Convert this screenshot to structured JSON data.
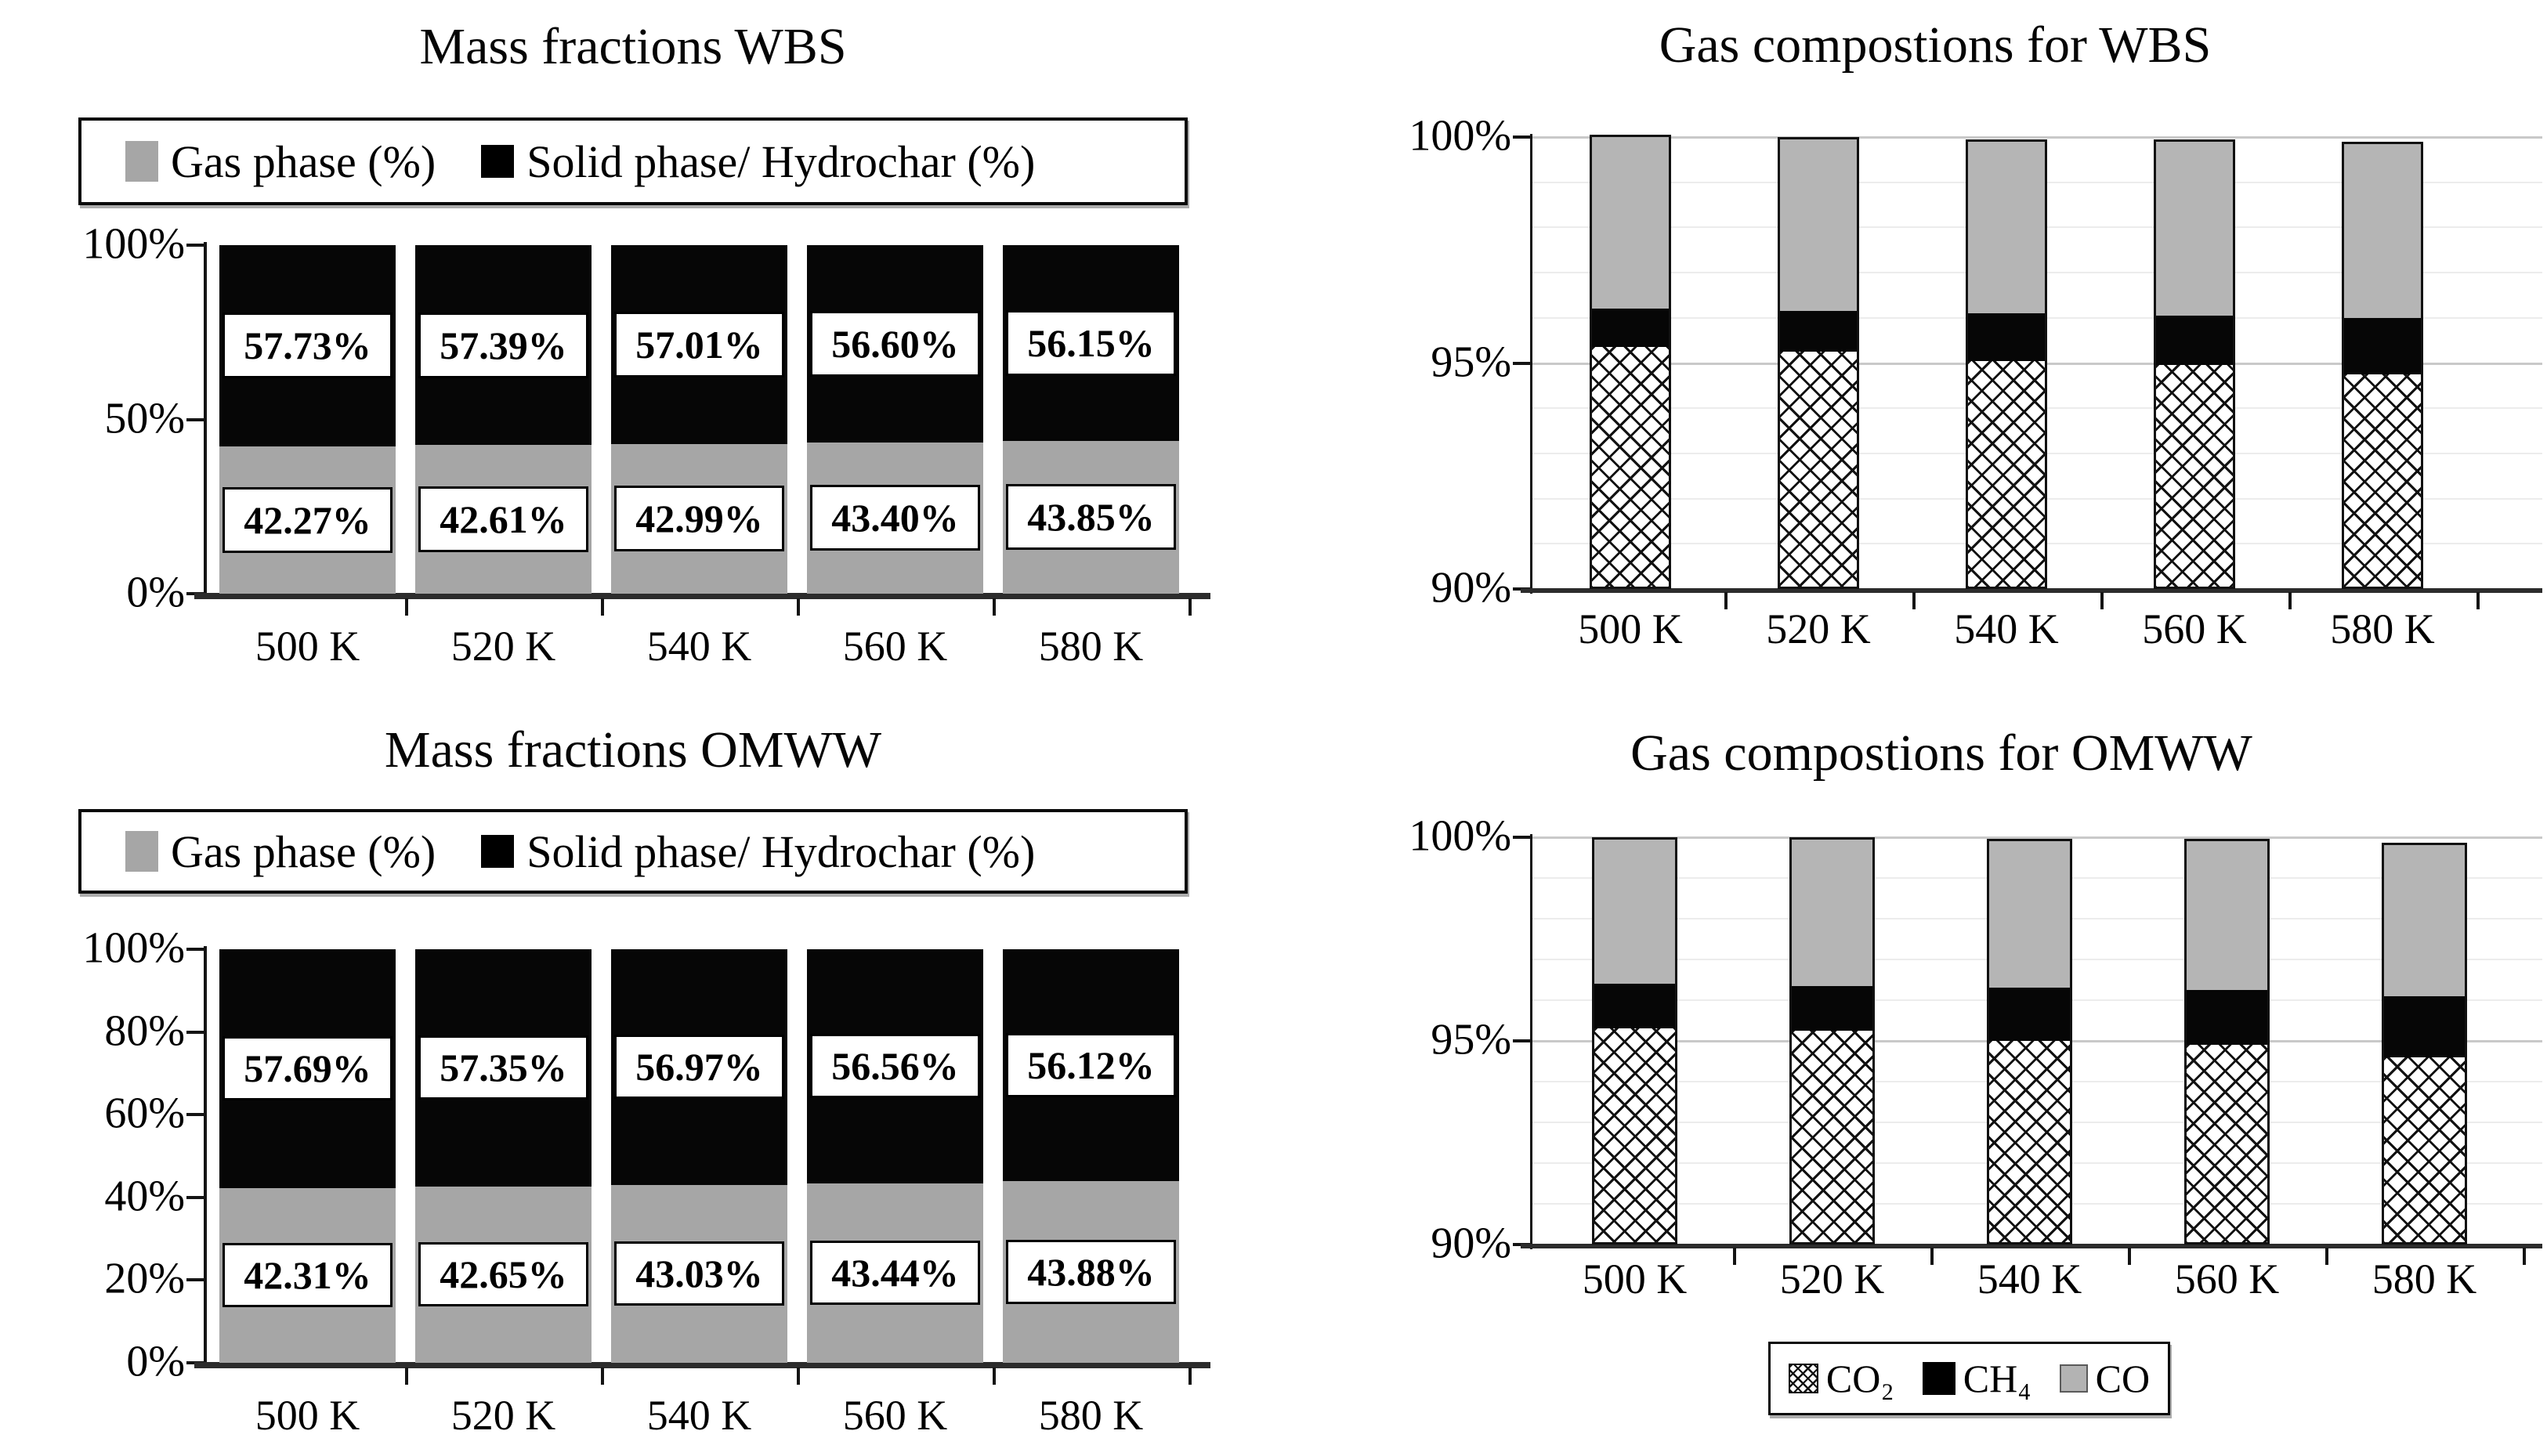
{
  "figure": {
    "background": "#ffffff",
    "colors": {
      "gas_phase_gray": "#a6a6a6",
      "solid_phase_black": "#000000",
      "co_gray": "#b5b5b5",
      "gridline_minor": "#ececec",
      "gridline_major": "#c9c9c9"
    }
  },
  "chart_data": [
    {
      "id": "mass_wbs",
      "type": "bar",
      "stacked": true,
      "title": "Mass fractions WBS",
      "categories": [
        "500 K",
        "520 K",
        "540 K",
        "560 K",
        "580 K"
      ],
      "series": [
        {
          "name": "Gas phase (%)",
          "swatch": "gray",
          "values": [
            42.27,
            42.61,
            42.99,
            43.4,
            43.85
          ],
          "labels": [
            "42.27%",
            "42.61%",
            "42.99%",
            "43.40%",
            "43.85%"
          ]
        },
        {
          "name": "Solid phase/ Hydrochar (%)",
          "swatch": "black",
          "values": [
            57.73,
            57.39,
            57.01,
            56.6,
            56.15
          ],
          "labels": [
            "57.73%",
            "57.39%",
            "57.01%",
            "56.60%",
            "56.15%"
          ]
        }
      ],
      "ylim": [
        0,
        100
      ],
      "y_ticks": [
        {
          "v": 0,
          "label": "0%"
        },
        {
          "v": 50,
          "label": "50%"
        },
        {
          "v": 100,
          "label": "100%"
        }
      ],
      "grid": false,
      "legend_position": "top"
    },
    {
      "id": "gas_wbs",
      "type": "bar",
      "stacked": true,
      "title": "Gas compostions for WBS",
      "categories": [
        "500 K",
        "520 K",
        "540 K",
        "560 K",
        "580 K"
      ],
      "series": [
        {
          "name": "CO₂",
          "swatch": "crosshatch",
          "values": [
            95.35,
            95.25,
            95.05,
            94.95,
            94.75
          ]
        },
        {
          "name": "CH₄",
          "swatch": "black",
          "values": [
            0.85,
            0.9,
            1.05,
            1.1,
            1.25
          ]
        },
        {
          "name": "CO",
          "swatch": "co",
          "values": [
            3.8,
            3.8,
            3.8,
            3.85,
            3.85
          ]
        }
      ],
      "ylim": [
        90,
        100
      ],
      "y_ticks": [
        {
          "v": 90,
          "label": "90%"
        },
        {
          "v": 95,
          "label": "95%"
        },
        {
          "v": 100,
          "label": "100%"
        }
      ],
      "grid": true,
      "grid_minor_step": 1,
      "legend_position": "none"
    },
    {
      "id": "mass_omww",
      "type": "bar",
      "stacked": true,
      "title": "Mass fractions OMWW",
      "categories": [
        "500 K",
        "520 K",
        "540 K",
        "560 K",
        "580 K"
      ],
      "series": [
        {
          "name": "Gas phase (%)",
          "swatch": "gray",
          "values": [
            42.31,
            42.65,
            43.03,
            43.44,
            43.88
          ],
          "labels": [
            "42.31%",
            "42.65%",
            "43.03%",
            "43.44%",
            "43.88%"
          ]
        },
        {
          "name": "Solid phase/ Hydrochar (%)",
          "swatch": "black",
          "values": [
            57.69,
            57.35,
            56.97,
            56.56,
            56.12
          ],
          "labels": [
            "57.69%",
            "57.35%",
            "56.97%",
            "56.56%",
            "56.12%"
          ]
        }
      ],
      "ylim": [
        0,
        100
      ],
      "y_ticks": [
        {
          "v": 0,
          "label": "0%"
        },
        {
          "v": 20,
          "label": "20%"
        },
        {
          "v": 40,
          "label": "40%"
        },
        {
          "v": 60,
          "label": "60%"
        },
        {
          "v": 80,
          "label": "80%"
        },
        {
          "v": 100,
          "label": "100%"
        }
      ],
      "grid": false,
      "legend_position": "top"
    },
    {
      "id": "gas_omww",
      "type": "bar",
      "stacked": true,
      "title": "Gas compostions for OMWW",
      "categories": [
        "500 K",
        "520 K",
        "540 K",
        "560 K",
        "580 K"
      ],
      "series": [
        {
          "name": "CO₂",
          "swatch": "crosshatch",
          "values": [
            95.3,
            95.25,
            95.0,
            94.9,
            94.6
          ]
        },
        {
          "name": "CH₄",
          "swatch": "black",
          "values": [
            1.1,
            1.1,
            1.3,
            1.35,
            1.5
          ]
        },
        {
          "name": "CO",
          "swatch": "co",
          "values": [
            3.55,
            3.6,
            3.6,
            3.65,
            3.7
          ]
        }
      ],
      "ylim": [
        90,
        100
      ],
      "y_ticks": [
        {
          "v": 90,
          "label": "90%"
        },
        {
          "v": 95,
          "label": "95%"
        },
        {
          "v": 100,
          "label": "100%"
        }
      ],
      "grid": true,
      "grid_minor_step": 1,
      "legend_position": "bottom"
    }
  ]
}
